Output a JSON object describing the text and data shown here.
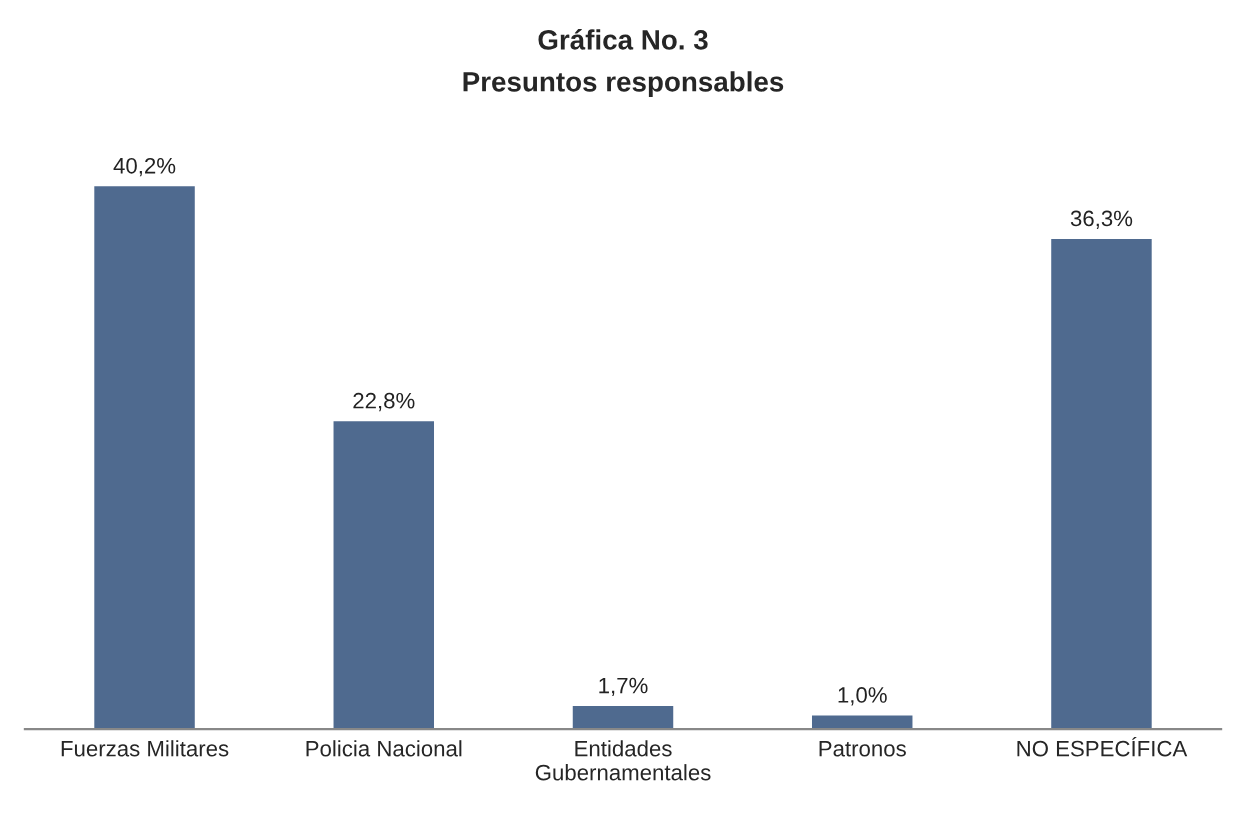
{
  "chart_data": {
    "type": "bar",
    "title": "Gráfica No. 3",
    "subtitle": "Presuntos responsables",
    "categories": [
      "Fuerzas Militares",
      "Policia Nacional",
      "Entidades\nGubernamentales",
      "Patronos",
      "NO ESPECÍFICA"
    ],
    "values": [
      40.2,
      22.8,
      1.7,
      1.0,
      36.3
    ],
    "value_labels": [
      "40,2%",
      "22,8%",
      "1,7%",
      "1,0%",
      "36,3%"
    ],
    "color": "#4f6a8f",
    "grid": false,
    "legend": false
  }
}
